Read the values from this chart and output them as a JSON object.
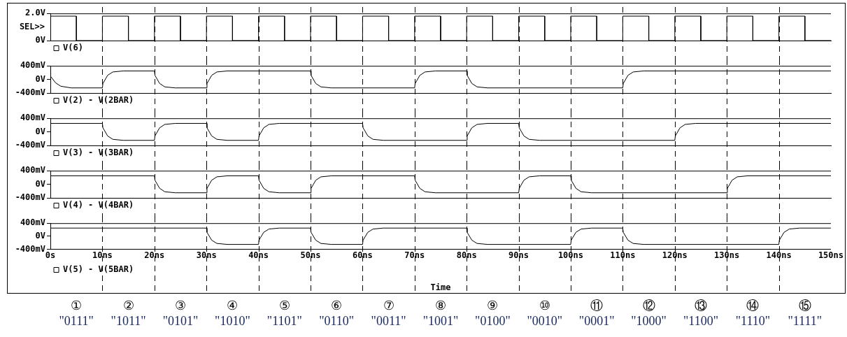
{
  "chart_data": [
    {
      "type": "line",
      "ylabel": "SEL>>",
      "xlim": [
        0,
        150
      ],
      "ylim": [
        0,
        2
      ],
      "yticks": [
        {
          "value": 0,
          "label": "0V"
        },
        {
          "value": 2,
          "label": "2.0V"
        }
      ],
      "tick_labels": "y",
      "grid": false,
      "legend": "bottom left",
      "series": [
        {
          "name": "V(6)",
          "color": "#000000",
          "x": [
            0,
            0,
            5,
            5,
            10,
            10,
            15,
            15,
            20,
            20,
            25,
            25,
            30,
            30,
            35,
            35,
            40,
            40,
            45,
            45,
            50,
            50,
            55,
            55,
            60,
            60,
            65,
            65,
            70,
            70,
            75,
            75,
            80,
            80,
            85,
            85,
            90,
            90,
            95,
            95,
            100,
            100,
            105,
            105,
            110,
            110,
            115,
            115,
            120,
            120,
            125,
            125,
            130,
            130,
            135,
            135,
            140,
            140,
            145,
            145,
            150
          ],
          "values": [
            0,
            1.8,
            1.8,
            0,
            0,
            1.8,
            1.8,
            0,
            0,
            1.8,
            1.8,
            0,
            0,
            1.8,
            1.8,
            0,
            0,
            1.8,
            1.8,
            0,
            0,
            1.8,
            1.8,
            0,
            0,
            1.8,
            1.8,
            0,
            0,
            1.8,
            1.8,
            0,
            0,
            1.8,
            1.8,
            0,
            0,
            1.8,
            1.8,
            0,
            0,
            1.8,
            1.8,
            0,
            0,
            1.8,
            1.8,
            0,
            0,
            1.8,
            1.8,
            0,
            0,
            1.8,
            1.8,
            0,
            0,
            1.8,
            1.8,
            0,
            0
          ]
        }
      ],
      "ref_lines": [
        {
          "axis": "x",
          "value": 10,
          "line_style": "dashed",
          "color": "#000000"
        },
        {
          "axis": "x",
          "value": 20,
          "line_style": "dashed",
          "color": "#000000"
        },
        {
          "axis": "x",
          "value": 30,
          "line_style": "dashed",
          "color": "#000000"
        },
        {
          "axis": "x",
          "value": 40,
          "line_style": "dashed",
          "color": "#000000"
        },
        {
          "axis": "x",
          "value": 50,
          "line_style": "dashed",
          "color": "#000000"
        },
        {
          "axis": "x",
          "value": 60,
          "line_style": "dashed",
          "color": "#000000"
        },
        {
          "axis": "x",
          "value": 70,
          "line_style": "dashed",
          "color": "#000000"
        },
        {
          "axis": "x",
          "value": 80,
          "line_style": "dashed",
          "color": "#000000"
        },
        {
          "axis": "x",
          "value": 90,
          "line_style": "dashed",
          "color": "#000000"
        },
        {
          "axis": "x",
          "value": 100,
          "line_style": "dashed",
          "color": "#000000"
        },
        {
          "axis": "x",
          "value": 110,
          "line_style": "dashed",
          "color": "#000000"
        },
        {
          "axis": "x",
          "value": 120,
          "line_style": "dashed",
          "color": "#000000"
        },
        {
          "axis": "x",
          "value": 130,
          "line_style": "dashed",
          "color": "#000000"
        },
        {
          "axis": "x",
          "value": 140,
          "line_style": "dashed",
          "color": "#000000"
        }
      ]
    },
    {
      "type": "line",
      "xlim": [
        0,
        150
      ],
      "ylim": [
        -400,
        400
      ],
      "yticks": [
        {
          "value": -400,
          "label": "-400mV"
        },
        {
          "value": 0,
          "label": "0V"
        },
        {
          "value": 400,
          "label": "400mV"
        }
      ],
      "tick_labels": "y",
      "grid": false,
      "legend": "bottom left",
      "series": [
        {
          "name": "V(2) - V(2BAR)",
          "color": "#000000",
          "x": [
            0,
            1,
            2,
            4,
            10,
            10.1,
            11,
            12,
            14,
            20,
            20.1,
            21,
            22,
            24,
            30,
            30.1,
            31,
            32,
            34,
            50,
            50.1,
            51,
            52,
            54,
            70,
            70.1,
            71,
            72,
            74,
            80,
            80.1,
            81,
            82,
            84,
            110,
            110.1,
            111,
            112,
            114,
            150
          ],
          "values": [
            100,
            -100,
            -200,
            -250,
            -250,
            -120,
            120,
            220,
            250,
            250,
            120,
            -120,
            -220,
            -250,
            -250,
            -120,
            120,
            220,
            250,
            250,
            120,
            -120,
            -220,
            -250,
            -250,
            -120,
            120,
            220,
            250,
            250,
            120,
            -120,
            -220,
            -250,
            -250,
            -120,
            120,
            220,
            250,
            250
          ]
        }
      ],
      "ref_lines": [
        {
          "axis": "x",
          "value": 10,
          "line_style": "dashed",
          "color": "#000000"
        },
        {
          "axis": "x",
          "value": 20,
          "line_style": "dashed",
          "color": "#000000"
        },
        {
          "axis": "x",
          "value": 30,
          "line_style": "dashed",
          "color": "#000000"
        },
        {
          "axis": "x",
          "value": 40,
          "line_style": "dashed",
          "color": "#000000"
        },
        {
          "axis": "x",
          "value": 50,
          "line_style": "dashed",
          "color": "#000000"
        },
        {
          "axis": "x",
          "value": 60,
          "line_style": "dashed",
          "color": "#000000"
        },
        {
          "axis": "x",
          "value": 70,
          "line_style": "dashed",
          "color": "#000000"
        },
        {
          "axis": "x",
          "value": 80,
          "line_style": "dashed",
          "color": "#000000"
        },
        {
          "axis": "x",
          "value": 90,
          "line_style": "dashed",
          "color": "#000000"
        },
        {
          "axis": "x",
          "value": 100,
          "line_style": "dashed",
          "color": "#000000"
        },
        {
          "axis": "x",
          "value": 110,
          "line_style": "dashed",
          "color": "#000000"
        },
        {
          "axis": "x",
          "value": 120,
          "line_style": "dashed",
          "color": "#000000"
        },
        {
          "axis": "x",
          "value": 130,
          "line_style": "dashed",
          "color": "#000000"
        },
        {
          "axis": "x",
          "value": 140,
          "line_style": "dashed",
          "color": "#000000"
        }
      ]
    },
    {
      "type": "line",
      "xlim": [
        0,
        150
      ],
      "ylim": [
        -400,
        400
      ],
      "yticks": [
        {
          "value": -400,
          "label": "-400mV"
        },
        {
          "value": 0,
          "label": "0V"
        },
        {
          "value": 400,
          "label": "400mV"
        }
      ],
      "tick_labels": "y",
      "grid": false,
      "legend": "bottom left",
      "series": [
        {
          "name": "V(3) - V(3BAR)",
          "color": "#000000",
          "x": [
            0,
            10,
            10.1,
            11,
            12,
            14,
            20,
            20.1,
            21,
            22,
            24,
            30,
            30.1,
            31,
            32,
            34,
            40,
            40.1,
            41,
            42,
            44,
            60,
            60.1,
            61,
            62,
            64,
            80,
            80.1,
            81,
            82,
            84,
            90,
            90.1,
            91,
            92,
            94,
            120,
            120.1,
            121,
            122,
            124,
            150
          ],
          "values": [
            250,
            250,
            120,
            -120,
            -220,
            -250,
            -250,
            -120,
            120,
            220,
            250,
            250,
            120,
            -120,
            -220,
            -250,
            -250,
            -120,
            120,
            220,
            250,
            250,
            120,
            -120,
            -220,
            -250,
            -250,
            -120,
            120,
            220,
            250,
            250,
            120,
            -120,
            -220,
            -250,
            -250,
            -120,
            120,
            220,
            250,
            250
          ]
        }
      ],
      "ref_lines": [
        {
          "axis": "x",
          "value": 10,
          "line_style": "dashed",
          "color": "#000000"
        },
        {
          "axis": "x",
          "value": 20,
          "line_style": "dashed",
          "color": "#000000"
        },
        {
          "axis": "x",
          "value": 30,
          "line_style": "dashed",
          "color": "#000000"
        },
        {
          "axis": "x",
          "value": 40,
          "line_style": "dashed",
          "color": "#000000"
        },
        {
          "axis": "x",
          "value": 50,
          "line_style": "dashed",
          "color": "#000000"
        },
        {
          "axis": "x",
          "value": 60,
          "line_style": "dashed",
          "color": "#000000"
        },
        {
          "axis": "x",
          "value": 70,
          "line_style": "dashed",
          "color": "#000000"
        },
        {
          "axis": "x",
          "value": 80,
          "line_style": "dashed",
          "color": "#000000"
        },
        {
          "axis": "x",
          "value": 90,
          "line_style": "dashed",
          "color": "#000000"
        },
        {
          "axis": "x",
          "value": 100,
          "line_style": "dashed",
          "color": "#000000"
        },
        {
          "axis": "x",
          "value": 110,
          "line_style": "dashed",
          "color": "#000000"
        },
        {
          "axis": "x",
          "value": 120,
          "line_style": "dashed",
          "color": "#000000"
        },
        {
          "axis": "x",
          "value": 130,
          "line_style": "dashed",
          "color": "#000000"
        },
        {
          "axis": "x",
          "value": 140,
          "line_style": "dashed",
          "color": "#000000"
        }
      ]
    },
    {
      "type": "line",
      "xlim": [
        0,
        150
      ],
      "ylim": [
        -400,
        400
      ],
      "yticks": [
        {
          "value": -400,
          "label": "-400mV"
        },
        {
          "value": 0,
          "label": "0V"
        },
        {
          "value": 400,
          "label": "400mV"
        }
      ],
      "tick_labels": "y",
      "grid": false,
      "legend": "bottom left",
      "series": [
        {
          "name": "V(4) - V(4BAR)",
          "color": "#000000",
          "x": [
            0,
            20,
            20.1,
            21,
            22,
            24,
            30,
            30.1,
            31,
            32,
            34,
            40,
            40.1,
            41,
            42,
            44,
            50,
            50.1,
            51,
            52,
            54,
            70,
            70.1,
            71,
            72,
            74,
            90,
            90.1,
            91,
            92,
            94,
            100,
            100.1,
            101,
            102,
            104,
            130,
            130.1,
            131,
            132,
            134,
            150
          ],
          "values": [
            250,
            250,
            120,
            -120,
            -220,
            -250,
            -250,
            -120,
            120,
            220,
            250,
            250,
            120,
            -120,
            -220,
            -250,
            -250,
            -120,
            120,
            220,
            250,
            250,
            120,
            -120,
            -220,
            -250,
            -250,
            -120,
            120,
            220,
            250,
            250,
            120,
            -120,
            -220,
            -250,
            -250,
            -120,
            120,
            220,
            250,
            250
          ]
        }
      ],
      "ref_lines": [
        {
          "axis": "x",
          "value": 10,
          "line_style": "dashed",
          "color": "#000000"
        },
        {
          "axis": "x",
          "value": 20,
          "line_style": "dashed",
          "color": "#000000"
        },
        {
          "axis": "x",
          "value": 30,
          "line_style": "dashed",
          "color": "#000000"
        },
        {
          "axis": "x",
          "value": 40,
          "line_style": "dashed",
          "color": "#000000"
        },
        {
          "axis": "x",
          "value": 50,
          "line_style": "dashed",
          "color": "#000000"
        },
        {
          "axis": "x",
          "value": 60,
          "line_style": "dashed",
          "color": "#000000"
        },
        {
          "axis": "x",
          "value": 70,
          "line_style": "dashed",
          "color": "#000000"
        },
        {
          "axis": "x",
          "value": 80,
          "line_style": "dashed",
          "color": "#000000"
        },
        {
          "axis": "x",
          "value": 90,
          "line_style": "dashed",
          "color": "#000000"
        },
        {
          "axis": "x",
          "value": 100,
          "line_style": "dashed",
          "color": "#000000"
        },
        {
          "axis": "x",
          "value": 110,
          "line_style": "dashed",
          "color": "#000000"
        },
        {
          "axis": "x",
          "value": 120,
          "line_style": "dashed",
          "color": "#000000"
        },
        {
          "axis": "x",
          "value": 130,
          "line_style": "dashed",
          "color": "#000000"
        },
        {
          "axis": "x",
          "value": 140,
          "line_style": "dashed",
          "color": "#000000"
        }
      ]
    },
    {
      "type": "line",
      "xlabel": "Time",
      "xlim": [
        0,
        150
      ],
      "xticks": [
        {
          "value": 0,
          "label": "0s"
        },
        {
          "value": 10,
          "label": "10ns"
        },
        {
          "value": 20,
          "label": "20ns"
        },
        {
          "value": 30,
          "label": "30ns"
        },
        {
          "value": 40,
          "label": "40ns"
        },
        {
          "value": 50,
          "label": "50ns"
        },
        {
          "value": 60,
          "label": "60ns"
        },
        {
          "value": 70,
          "label": "70ns"
        },
        {
          "value": 80,
          "label": "80ns"
        },
        {
          "value": 90,
          "label": "90ns"
        },
        {
          "value": 100,
          "label": "100ns"
        },
        {
          "value": 110,
          "label": "110ns"
        },
        {
          "value": 120,
          "label": "120ns"
        },
        {
          "value": 130,
          "label": "130ns"
        },
        {
          "value": 140,
          "label": "140ns"
        },
        {
          "value": 150,
          "label": "150ns"
        }
      ],
      "ylim": [
        -400,
        400
      ],
      "yticks": [
        {
          "value": -400,
          "label": "-400mV"
        },
        {
          "value": 0,
          "label": "0V"
        },
        {
          "value": 400,
          "label": "400mV"
        }
      ],
      "grid": false,
      "legend": "bottom left",
      "series": [
        {
          "name": "V(5) - V(5BAR)",
          "color": "#000000",
          "x": [
            0,
            30,
            30.1,
            31,
            32,
            34,
            40,
            40.1,
            41,
            42,
            44,
            50,
            50.1,
            51,
            52,
            54,
            60,
            60.1,
            61,
            62,
            64,
            80,
            80.1,
            81,
            82,
            84,
            100,
            100.1,
            101,
            102,
            104,
            110,
            110.1,
            111,
            112,
            114,
            140,
            140.1,
            141,
            142,
            144,
            150
          ],
          "values": [
            250,
            250,
            120,
            -120,
            -220,
            -250,
            -250,
            -120,
            120,
            220,
            250,
            250,
            120,
            -120,
            -220,
            -250,
            -250,
            -120,
            120,
            220,
            250,
            250,
            120,
            -120,
            -220,
            -250,
            -250,
            -120,
            120,
            220,
            250,
            250,
            120,
            -120,
            -220,
            -250,
            -250,
            -120,
            120,
            220,
            250,
            250
          ]
        }
      ],
      "ref_lines": [
        {
          "axis": "x",
          "value": 10,
          "line_style": "dashed",
          "color": "#000000"
        },
        {
          "axis": "x",
          "value": 20,
          "line_style": "dashed",
          "color": "#000000"
        },
        {
          "axis": "x",
          "value": 30,
          "line_style": "dashed",
          "color": "#000000"
        },
        {
          "axis": "x",
          "value": 40,
          "line_style": "dashed",
          "color": "#000000"
        },
        {
          "axis": "x",
          "value": 50,
          "line_style": "dashed",
          "color": "#000000"
        },
        {
          "axis": "x",
          "value": 60,
          "line_style": "dashed",
          "color": "#000000"
        },
        {
          "axis": "x",
          "value": 70,
          "line_style": "dashed",
          "color": "#000000"
        },
        {
          "axis": "x",
          "value": 80,
          "line_style": "dashed",
          "color": "#000000"
        },
        {
          "axis": "x",
          "value": 90,
          "line_style": "dashed",
          "color": "#000000"
        },
        {
          "axis": "x",
          "value": 100,
          "line_style": "dashed",
          "color": "#000000"
        },
        {
          "axis": "x",
          "value": 110,
          "line_style": "dashed",
          "color": "#000000"
        },
        {
          "axis": "x",
          "value": 120,
          "line_style": "dashed",
          "color": "#000000"
        },
        {
          "axis": "x",
          "value": 130,
          "line_style": "dashed",
          "color": "#000000"
        },
        {
          "axis": "x",
          "value": 140,
          "line_style": "dashed",
          "color": "#000000"
        }
      ],
      "annotations": [
        "① \"0111\"",
        "② \"1011\"",
        "③ \"0101\"",
        "④ \"1010\"",
        "⑤ \"1101\"",
        "⑥ \"0110\"",
        "⑦ \"0011\"",
        "⑧ \"1001\"",
        "⑨ \"0100\"",
        "⑩ \"0010\"",
        "⑪ \"0001\"",
        "⑫ \"1000\"",
        "⑬ \"1100\"",
        "⑭ \"1110\"",
        "⑮ \"1111\""
      ]
    }
  ]
}
